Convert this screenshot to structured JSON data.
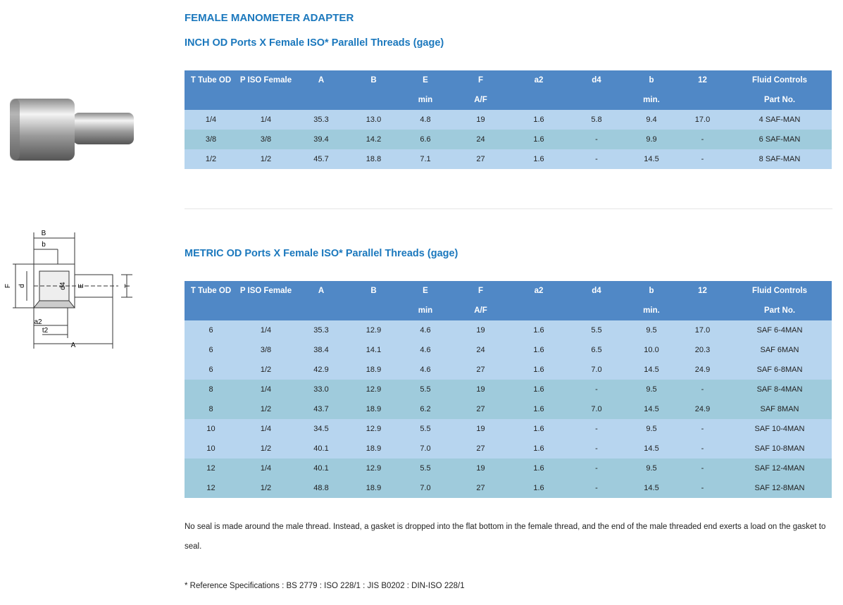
{
  "header": {
    "title": "FEMALE MANOMETER ADAPTER"
  },
  "diagram": {
    "labels": [
      "B",
      "b",
      "F",
      "d",
      "d4",
      "E",
      "T",
      "a2",
      "t2",
      "A"
    ]
  },
  "tables": [
    {
      "title": "INCH OD Ports X Female ISO* Parallel Threads (gage)",
      "header": [
        [
          "T Tube OD",
          "P ISO Female",
          "A",
          "B",
          "E",
          "F",
          "a2",
          "d4",
          "b",
          "12",
          "Fluid Controls"
        ],
        [
          null,
          null,
          null,
          null,
          "min",
          "A/F",
          null,
          null,
          "min.",
          null,
          "Part No."
        ]
      ],
      "rows": [
        [
          "1/4",
          "1/4",
          "35.3",
          "13.0",
          "4.8",
          "19",
          "1.6",
          "5.8",
          "9.4",
          "17.0",
          "4 SAF-MAN"
        ],
        [
          "3/8",
          "3/8",
          "39.4",
          "14.2",
          "6.6",
          "24",
          "1.6",
          "-",
          "9.9",
          "-",
          "6 SAF-MAN"
        ],
        [
          "1/2",
          "1/2",
          "45.7",
          "18.8",
          "7.1",
          "27",
          "1.6",
          "-",
          "14.5",
          "-",
          "8 SAF-MAN"
        ]
      ]
    },
    {
      "title": "METRIC OD Ports X Female ISO* Parallel Threads (gage)",
      "header": [
        [
          "T Tube OD",
          "P ISO Female",
          "A",
          "B",
          "E",
          "F",
          "a2",
          "d4",
          "b",
          "12",
          "Fluid Controls"
        ],
        [
          null,
          null,
          null,
          null,
          "min",
          "A/F",
          null,
          null,
          "min.",
          null,
          "Part No."
        ]
      ],
      "rows": [
        [
          "6",
          "1/4",
          "35.3",
          "12.9",
          "4.6",
          "19",
          "1.6",
          "5.5",
          "9.5",
          "17.0",
          "SAF 6-4MAN"
        ],
        [
          "6",
          "3/8",
          "38.4",
          "14.1",
          "4.6",
          "24",
          "1.6",
          "6.5",
          "10.0",
          "20.3",
          "SAF 6MAN"
        ],
        [
          "6",
          "1/2",
          "42.9",
          "18.9",
          "4.6",
          "27",
          "1.6",
          "7.0",
          "14.5",
          "24.9",
          "SAF 6-8MAN"
        ],
        [
          "8",
          "1/4",
          "33.0",
          "12.9",
          "5.5",
          "19",
          "1.6",
          "-",
          "9.5",
          "-",
          "SAF 8-4MAN"
        ],
        [
          "8",
          "1/2",
          "43.7",
          "18.9",
          "6.2",
          "27",
          "1.6",
          "7.0",
          "14.5",
          "24.9",
          "SAF 8MAN"
        ],
        [
          "10",
          "1/4",
          "34.5",
          "12.9",
          "5.5",
          "19",
          "1.6",
          "-",
          "9.5",
          "-",
          "SAF 10-4MAN"
        ],
        [
          "10",
          "1/2",
          "40.1",
          "18.9",
          "7.0",
          "27",
          "1.6",
          "-",
          "14.5",
          "-",
          "SAF 10-8MAN"
        ],
        [
          "12",
          "1/4",
          "40.1",
          "12.9",
          "5.5",
          "19",
          "1.6",
          "-",
          "9.5",
          "-",
          "SAF 12-4MAN"
        ],
        [
          "12",
          "1/2",
          "48.8",
          "18.9",
          "7.0",
          "27",
          "1.6",
          "-",
          "14.5",
          "-",
          "SAF 12-8MAN"
        ]
      ]
    }
  ],
  "notes": [
    "No seal is made around the male thread. Instead, a gasket is dropped into the flat bottom in the female thread, and the end of the male threaded end exerts a load on the gasket to seal.",
    "* Reference Specifications : BS 2779 : ISO 228/1 : JIS B0202 : DIN-ISO 228/1"
  ]
}
